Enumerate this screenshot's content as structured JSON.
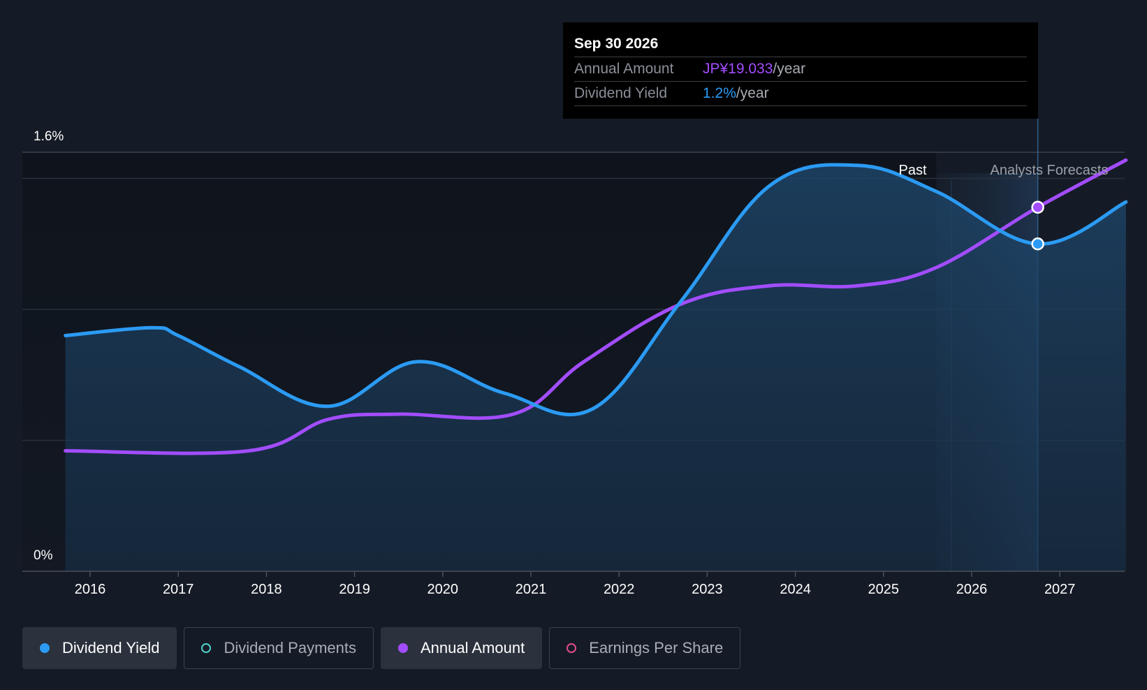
{
  "chart_data": {
    "type": "line",
    "x_ticks": [
      "2016",
      "2017",
      "2018",
      "2019",
      "2020",
      "2021",
      "2022",
      "2023",
      "2024",
      "2025",
      "2026",
      "2027"
    ],
    "y_tick_labels": [
      "1.6%",
      "0%"
    ],
    "ylim_percent": [
      0,
      1.6
    ],
    "grid": true,
    "regions": {
      "past_label": "Past",
      "forecast_label": "Analysts Forecasts",
      "forecast_start": 2025.6
    },
    "series": [
      {
        "name": "Dividend Yield",
        "color": "#2b9bf4",
        "unit": "%",
        "points": [
          [
            2015.72,
            0.9
          ],
          [
            2016.7,
            0.93
          ],
          [
            2017.0,
            0.9
          ],
          [
            2017.7,
            0.78
          ],
          [
            2018.7,
            0.63
          ],
          [
            2019.7,
            0.8
          ],
          [
            2020.7,
            0.68
          ],
          [
            2021.7,
            0.62
          ],
          [
            2022.7,
            1.03
          ],
          [
            2023.7,
            1.47
          ],
          [
            2024.7,
            1.55
          ],
          [
            2025.6,
            1.45
          ],
          [
            2026.75,
            1.25
          ],
          [
            2027.75,
            1.41
          ]
        ]
      },
      {
        "name": "Annual Amount",
        "color": "#a24dff",
        "points": [
          [
            2015.72,
            0.46
          ],
          [
            2017.8,
            0.46
          ],
          [
            2018.7,
            0.58
          ],
          [
            2019.5,
            0.6
          ],
          [
            2020.8,
            0.6
          ],
          [
            2021.6,
            0.8
          ],
          [
            2022.7,
            1.02
          ],
          [
            2023.7,
            1.09
          ],
          [
            2024.7,
            1.09
          ],
          [
            2025.6,
            1.16
          ],
          [
            2026.75,
            1.39
          ],
          [
            2027.75,
            1.57
          ]
        ]
      }
    ],
    "hover": {
      "x": 2026.75,
      "date": "Sep 30 2026",
      "rows": [
        {
          "label": "Annual Amount",
          "value": "JP¥19.033",
          "unit": "/year",
          "color": "purple"
        },
        {
          "label": "Dividend Yield",
          "value": "1.2%",
          "unit": "/year",
          "color": "blue"
        }
      ]
    }
  },
  "legend": [
    {
      "label": "Dividend Yield",
      "color": "#2b9bf4",
      "style": "filled",
      "active": true
    },
    {
      "label": "Dividend Payments",
      "color": "#4fd1c5",
      "style": "hollow",
      "active": false
    },
    {
      "label": "Annual Amount",
      "color": "#a24dff",
      "style": "filled",
      "active": true
    },
    {
      "label": "Earnings Per Share",
      "color": "#e04c8c",
      "style": "hollow",
      "active": false
    }
  ]
}
